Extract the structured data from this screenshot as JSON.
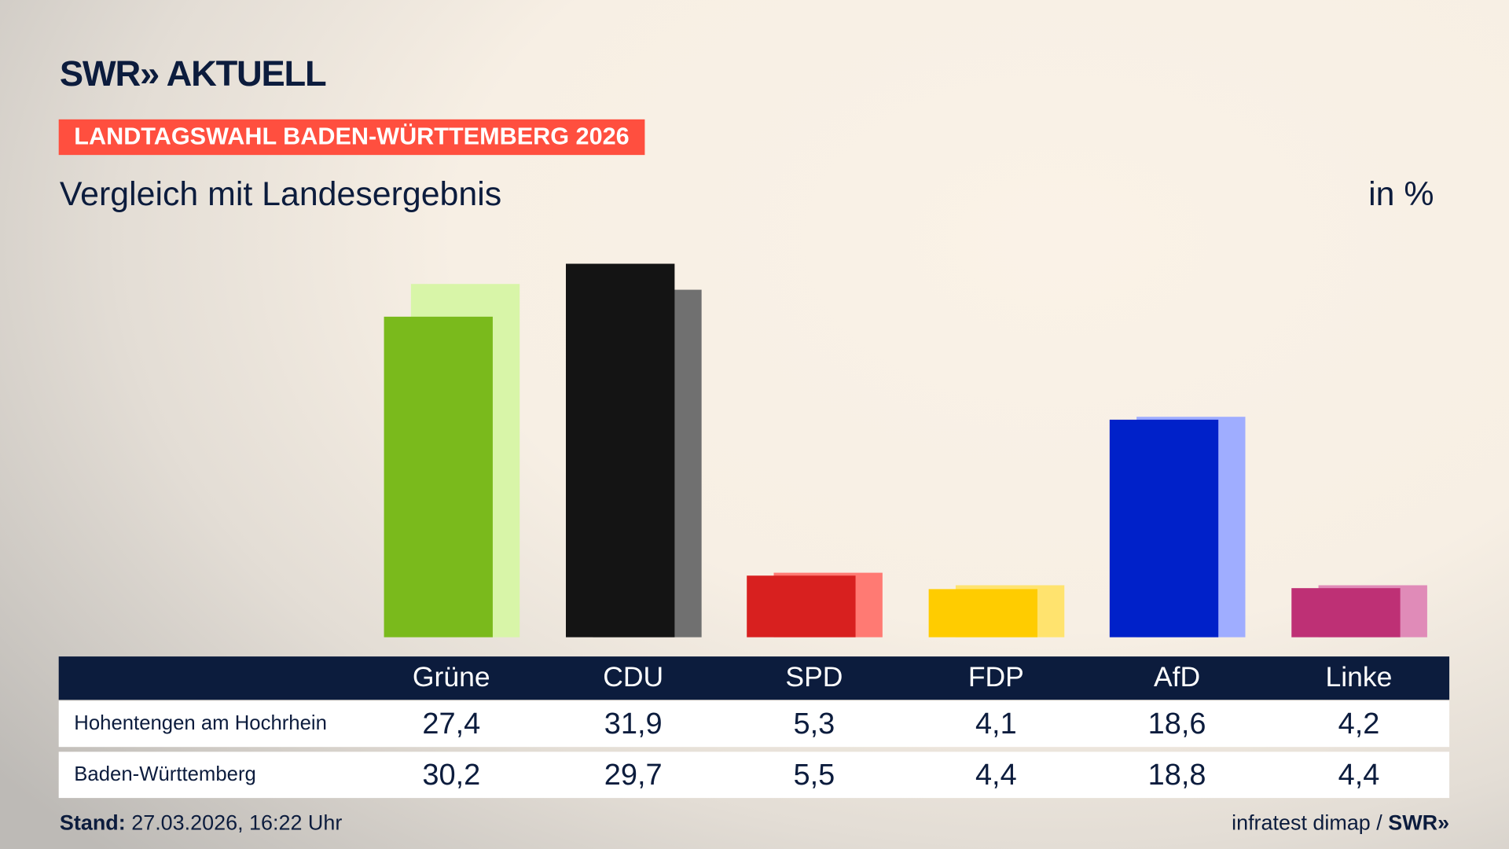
{
  "header": {
    "logo": "SWR» AKTUELL",
    "banner": "LANDTAGSWAHL BADEN-WÜRTTEMBERG 2026",
    "subtitle": "Vergleich mit Landesergebnis",
    "unit": "in %"
  },
  "chart_data": {
    "type": "bar",
    "categories": [
      "Grüne",
      "CDU",
      "SPD",
      "FDP",
      "AfD",
      "Linke"
    ],
    "series": [
      {
        "name": "Hohentengen am Hochrhein",
        "values": [
          27.4,
          31.9,
          5.3,
          4.1,
          18.6,
          4.2
        ],
        "colors": [
          "#7aba1c",
          "#141414",
          "#d8201f",
          "#ffcc00",
          "#0021c9",
          "#be3075"
        ]
      },
      {
        "name": "Baden-Württemberg",
        "values": [
          30.2,
          29.7,
          5.5,
          4.4,
          18.8,
          4.4
        ],
        "colors": [
          "#d8f5a8",
          "#707070",
          "#ff7a73",
          "#ffe36e",
          "#9fadff",
          "#e08bb8"
        ]
      }
    ],
    "values_display": [
      [
        "27,4",
        "31,9",
        "5,3",
        "4,1",
        "18,6",
        "4,2"
      ],
      [
        "30,2",
        "29,7",
        "5,5",
        "4,4",
        "18,8",
        "4,4"
      ]
    ],
    "ylim": [
      0,
      32
    ],
    "grid": false
  },
  "footer": {
    "stand_label": "Stand:",
    "stand_value": "27.03.2026, 16:22 Uhr",
    "source": "infratest dimap / ",
    "source_logo": "SWR»"
  },
  "colors": {
    "navy": "#0c1c3d",
    "banner": "#ff4f3f"
  }
}
